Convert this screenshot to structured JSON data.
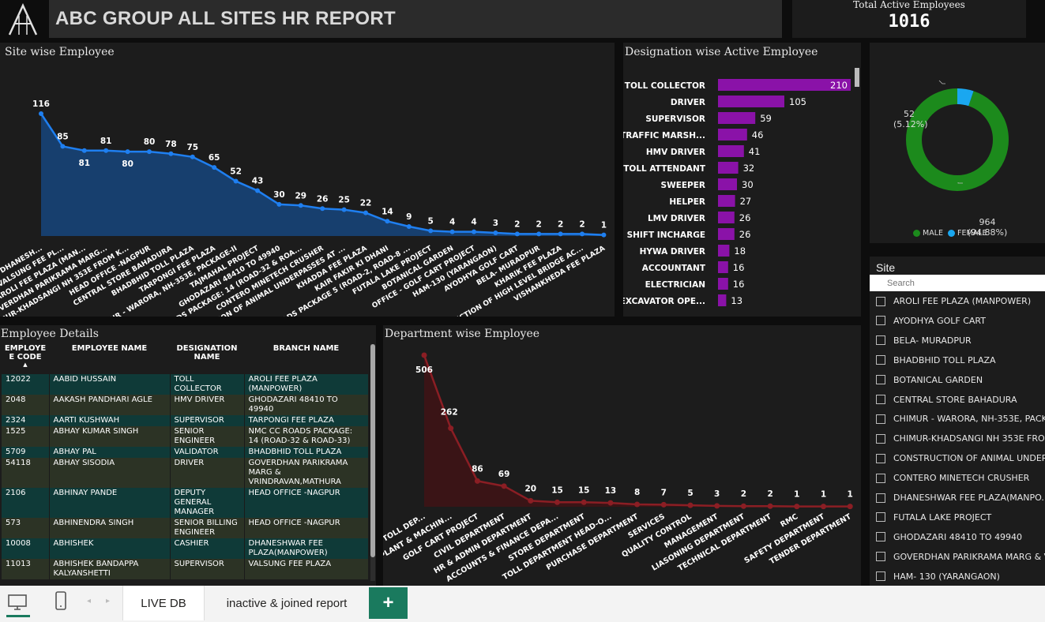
{
  "header": {
    "title": "ABC GROUP ALL SITES HR REPORT",
    "logo_text": "ABC"
  },
  "kpi": {
    "label": "Total Active Employees",
    "value": "1016"
  },
  "site_chart": {
    "title": "Site wise Employee",
    "color": "#1f7ff0",
    "area_color": "#173f6e"
  },
  "designation_chart": {
    "title": "Designation wise Active Employee",
    "color": "#8a12a8"
  },
  "gender_chart": {
    "male_label": "964",
    "male_pct": "(94.88%)",
    "female_label": "52",
    "female_pct": "(5.12%)",
    "legend_male": "MALE",
    "legend_female": "FEMALE",
    "male_color": "#1c8a1c",
    "female_color": "#1aa7f0"
  },
  "department_chart": {
    "title": "Department wise Employee",
    "color": "#8b1e24",
    "area_color": "#3a1416"
  },
  "chart_data": [
    {
      "type": "area",
      "title": "Site wise Employee",
      "categories": [
        "DHANESH...",
        "VALSUNG FEE PL...",
        "AROLI FEE PLAZA (MAN...",
        "GOVERDHAN PARIKRAMA MARG...",
        "CHIMUR-KHADSANGI NH 353E FROM K...",
        "HEAD OFFICE -NAGPUR",
        "CENTRAL STORE BAHADURA",
        "BHADBHID TOLL PLAZA",
        "TARPONGI FEE PLAZA",
        "CHIMUR - WARORA, NH-353E, PACKAGE-II",
        "TAJMAHAL PROJECT",
        "GHODAZARI 48410 TO 49940",
        "NMC CC ROADS PACKAGE: 14 (ROAD-32 & ROA...",
        "CONTERO MINETECH CRUSHER",
        "CONSTRUCTION OF ANIMAL UNDERPASSES AT ...",
        "KHADDA FEE PLAZA",
        "KAIR FAKIR KI DHANI",
        "NMC CC ROADS PACKAGE 5 (ROAD-2, ROAD-8 ...",
        "FUTALA LAKE PROJECT",
        "BOTANICAL GARDEN",
        "OFFICE - GOLF CART PROJECT",
        "HAM-130 (YARANGAON)",
        "AYODHYA GOLF CART",
        "BELA- MURADPUR",
        "KHARIK FEE PLAZA",
        "RECONSTRUCTION OF HIGH LEVEL BRIDGE AC...",
        "VISHANKHEDA FEE PLAZA"
      ],
      "values": [
        116,
        85,
        81,
        81,
        80,
        80,
        78,
        75,
        65,
        52,
        43,
        30,
        29,
        26,
        25,
        22,
        14,
        9,
        5,
        4,
        4,
        3,
        2,
        2,
        2,
        2,
        1
      ]
    },
    {
      "type": "bar",
      "title": "Designation wise Active Employee",
      "categories": [
        "TOLL COLLECTOR",
        "DRIVER",
        "SUPERVISOR",
        "TRAFFIC MARSH...",
        "HMV DRIVER",
        "TOLL ATTENDANT",
        "SWEEPER",
        "HELPER",
        "LMV DRIVER",
        "SHIFT INCHARGE",
        "HYWA DRIVER",
        "ACCOUNTANT",
        "ELECTRICIAN",
        "EXCAVATOR OPE..."
      ],
      "values": [
        210,
        105,
        59,
        46,
        41,
        32,
        30,
        27,
        26,
        26,
        18,
        16,
        16,
        13
      ]
    },
    {
      "type": "pie",
      "categories": [
        "MALE",
        "FEMALE"
      ],
      "values": [
        964,
        52
      ]
    },
    {
      "type": "area",
      "title": "Department wise Employee",
      "categories": [
        "TOLL DEP...",
        "PLANT & MACHIN...",
        "GOLF CART PROJECT",
        "CIVIL DEPARTMENT",
        "HR & ADMIN DEPARTMENT",
        "ACCOUNTS & FINANCE DEPA...",
        "STORE DEPARTMENT",
        "TOLL DEPARTMENT HEAD-O...",
        "PURCHASE DEPARTMENT",
        "SERVICES",
        "QUALITY CONTROL",
        "MANAGEMENT",
        "LIASONING DEPARTMENT",
        "TECHNICAL DEPARTMENT",
        "RMC",
        "SAFETY DEPARTMENT",
        "TENDER DEPARTMENT"
      ],
      "values": [
        506,
        262,
        86,
        69,
        20,
        15,
        15,
        13,
        8,
        7,
        5,
        3,
        2,
        2,
        1,
        1,
        1
      ]
    }
  ],
  "employee_table": {
    "title": "Employee Details",
    "headers": [
      "EMPLOYE E CODE",
      "EMPLOYEE NAME",
      "DESIGNATION NAME",
      "BRANCH NAME"
    ],
    "rows": [
      [
        "12022",
        "AABID HUSSAIN",
        "TOLL COLLECTOR",
        "AROLI FEE PLAZA (MANPOWER)"
      ],
      [
        "2048",
        "AAKASH PANDHARI AGLE",
        "HMV DRIVER",
        "GHODAZARI 48410 TO 49940"
      ],
      [
        "2324",
        "AARTI KUSHWAH",
        "SUPERVISOR",
        "TARPONGI FEE PLAZA"
      ],
      [
        "1525",
        "ABHAY KUMAR SINGH",
        "SENIOR ENGINEER",
        "NMC CC ROADS PACKAGE: 14 (ROAD-32 & ROAD-33)"
      ],
      [
        "5709",
        "ABHAY PAL",
        "VALIDATOR",
        "BHADBHID TOLL PLAZA"
      ],
      [
        "54118",
        "ABHAY SISODIA",
        "DRIVER",
        "GOVERDHAN PARIKRAMA MARG & VRINDRAVAN,MATHURA"
      ],
      [
        "2106",
        "ABHINAY PANDE",
        "DEPUTY GENERAL MANAGER",
        "HEAD OFFICE -NAGPUR"
      ],
      [
        "573",
        "ABHINENDRA SINGH",
        "SENIOR BILLING ENGINEER",
        "HEAD OFFICE -NAGPUR"
      ],
      [
        "10008",
        "ABHISHEK",
        "CASHIER",
        "DHANESHWAR FEE PLAZA(MANPOWER)"
      ],
      [
        "11013",
        "ABHISHEK BANDAPPA KALYANSHETTI",
        "SUPERVISOR",
        "VALSUNG FEE PLAZA"
      ]
    ]
  },
  "site_slicer": {
    "title": "Site",
    "placeholder": "Search",
    "items": [
      "AROLI FEE PLAZA (MANPOWER)",
      "AYODHYA GOLF CART",
      "BELA- MURADPUR",
      "BHADBHID TOLL PLAZA",
      "BOTANICAL GARDEN",
      "CENTRAL STORE BAHADURA",
      "CHIMUR - WARORA, NH-353E, PACK...",
      "CHIMUR-KHADSANGI NH 353E FRO...",
      "CONSTRUCTION OF ANIMAL UNDER...",
      "CONTERO MINETECH CRUSHER",
      "DHANESHWAR FEE PLAZA(MANPO...",
      "FUTALA LAKE PROJECT",
      "GHODAZARI 48410 TO 49940",
      "GOVERDHAN PARIKRAMA MARG & V...",
      "HAM- 130 (YARANGAON)"
    ]
  },
  "tabs": {
    "active": "LIVE DB",
    "second": "inactive & joined report",
    "add": "+"
  }
}
